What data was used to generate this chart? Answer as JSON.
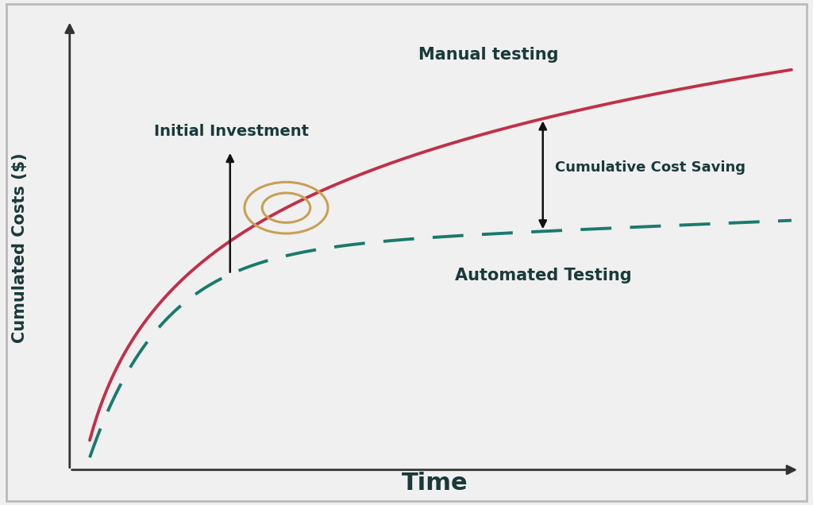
{
  "background_color": "#f0f0f0",
  "plot_bg_color": "#f0f0f0",
  "xlabel": "Time",
  "ylabel": "Cumulated Costs ($)",
  "xlabel_fontsize": 22,
  "ylabel_fontsize": 15,
  "manual_color": "#c0304a",
  "auto_color": "#1a7a6e",
  "manual_linewidth": 2.8,
  "auto_linewidth": 2.8,
  "manual_label": "Manual testing",
  "auto_label": "Automated Testing",
  "initial_investment_label": "Initial Investment",
  "cumulative_saving_label": "Cumulative Cost Saving",
  "circle_color": "#c8a055",
  "arrow_color": "#111111",
  "border_color": "#bbbbbb",
  "label_color": "#1a3a3a",
  "axis_color": "#333333"
}
